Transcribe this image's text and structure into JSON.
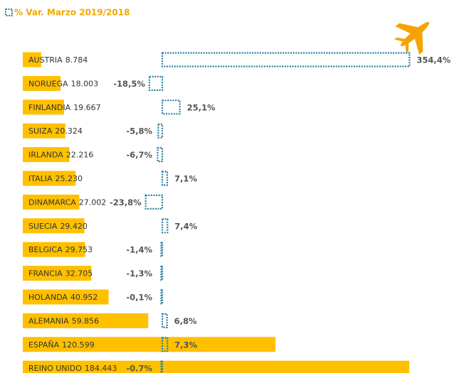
{
  "chart_data": {
    "type": "bar",
    "title": "% Var.  Marzo 2019/2018",
    "categories": [
      "AUSTRIA",
      "NORUEGA",
      "FINLANDIA",
      "SUIZA",
      "IRLANDA",
      "ITALIA",
      "DINAMARCA",
      "SUECIA",
      "BELGICA",
      "FRANCIA",
      "HOLANDA",
      "ALEMANIA",
      "ESPAÑA",
      "REINO UNIDO"
    ],
    "series": [
      {
        "color": "#ffc000",
        "values": [
          8784,
          18003,
          19667,
          20324,
          22216,
          25230,
          27002,
          29420,
          29753,
          32705,
          40952,
          59856,
          120599,
          184443
        ],
        "value_labels": [
          "8.784",
          "18.003",
          "19.667",
          "20.324",
          "22.216",
          "25.230",
          "27.002",
          "29.420",
          "29.753",
          "32.705",
          "40.952",
          "59.856",
          "120.599",
          "184.443"
        ]
      },
      {
        "color": "#2a7fa3",
        "values": [
          354.4,
          -18.5,
          25.1,
          -5.8,
          -6.7,
          7.1,
          -23.8,
          7.4,
          -1.4,
          -1.3,
          -0.1,
          6.8,
          7.3,
          -0.7
        ],
        "value_labels": [
          "354,4%",
          "-18,5%",
          "25,1%",
          "-5,8%",
          "-6,7%",
          "7,1%",
          "-23,8%",
          "7,4%",
          "-1,4%",
          "-1,3%",
          "-0,1%",
          "6,8%",
          "7,3%",
          "-0.7%"
        ]
      }
    ]
  }
}
